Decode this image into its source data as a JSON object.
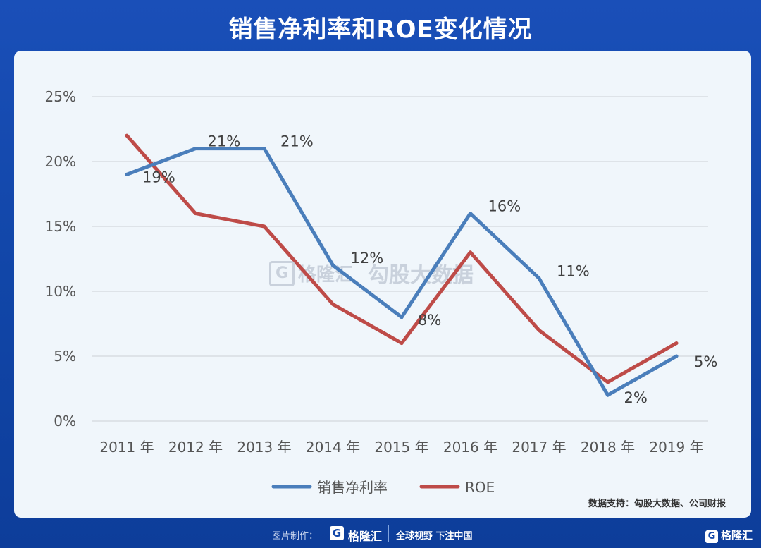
{
  "title": "销售净利率和ROE变化情况",
  "chart_data": {
    "type": "line",
    "categories": [
      "2011 年",
      "2012 年",
      "2013 年",
      "2014 年",
      "2015 年",
      "2016 年",
      "2017 年",
      "2018 年",
      "2019 年"
    ],
    "series": [
      {
        "name": "销售净利率",
        "color": "#4a7ebb",
        "values": [
          19,
          21,
          21,
          12,
          8,
          16,
          11,
          2,
          5
        ],
        "data_labels": [
          "19%",
          "21%",
          "21%",
          "12%",
          "8%",
          "16%",
          "11%",
          "2%",
          "5%"
        ]
      },
      {
        "name": "ROE",
        "color": "#be4b48",
        "values": [
          22,
          16,
          15,
          9,
          6,
          13,
          7,
          3,
          6
        ]
      }
    ],
    "ylim": [
      0,
      25
    ],
    "yticks": [
      "0%",
      "5%",
      "10%",
      "15%",
      "20%",
      "25%"
    ],
    "ytick_values": [
      0,
      5,
      10,
      15,
      20,
      25
    ],
    "grid": true,
    "legend": "bottom"
  },
  "source_text": "数据支持：勾股大数据、公司财报",
  "watermark": {
    "logo": "G",
    "brand": "格隆汇",
    "text": "勾股大数据"
  },
  "footer": {
    "made_by": "图片制作：",
    "logo": "G",
    "brand": "格隆汇",
    "slogan": "全球视野 下注中国"
  },
  "corner_brand": "格隆汇"
}
